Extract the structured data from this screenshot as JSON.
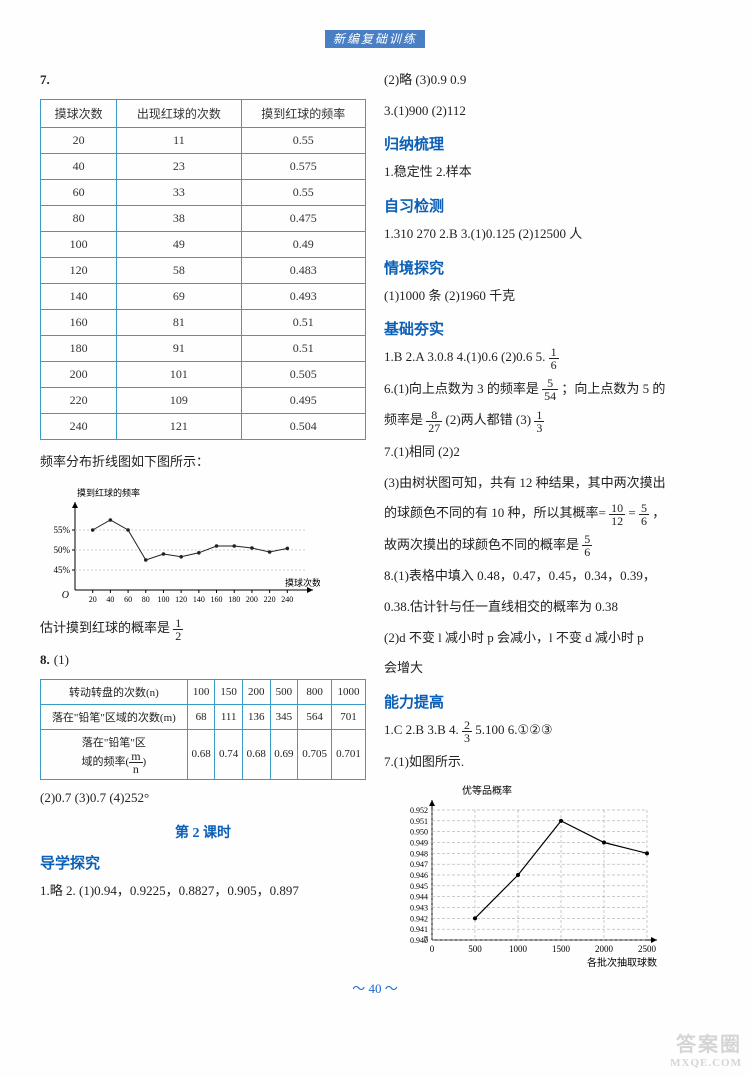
{
  "header": {
    "title": "新编复础训练"
  },
  "left": {
    "q7": {
      "label": "7.",
      "headers": [
        "摸球次数",
        "出现红球的次数",
        "摸到红球的频率"
      ],
      "rows": [
        [
          "20",
          "11",
          "0.55"
        ],
        [
          "40",
          "23",
          "0.575"
        ],
        [
          "60",
          "33",
          "0.55"
        ],
        [
          "80",
          "38",
          "0.475"
        ],
        [
          "100",
          "49",
          "0.49"
        ],
        [
          "120",
          "58",
          "0.483"
        ],
        [
          "140",
          "69",
          "0.493"
        ],
        [
          "160",
          "81",
          "0.51"
        ],
        [
          "180",
          "91",
          "0.51"
        ],
        [
          "200",
          "101",
          "0.505"
        ],
        [
          "220",
          "109",
          "0.495"
        ],
        [
          "240",
          "121",
          "0.504"
        ]
      ],
      "chart_caption": "频率分布折线图如下图所示：",
      "chart": {
        "ylabel": "摸到红球的频率",
        "xlabel": "摸球次数",
        "xticks": [
          "20",
          "40",
          "60",
          "80",
          "100",
          "120",
          "140",
          "160",
          "180",
          "200",
          "220",
          "240"
        ],
        "yticks": [
          "45%",
          "50%",
          "55%"
        ],
        "points_y": [
          0.55,
          0.575,
          0.55,
          0.475,
          0.49,
          0.483,
          0.493,
          0.51,
          0.51,
          0.505,
          0.495,
          0.504
        ],
        "ymin": 0.4,
        "ymax": 0.6,
        "line_color": "#222",
        "axis_color": "#000"
      },
      "conclusion_pre": "估计摸到红球的概率是",
      "conclusion_num": "1",
      "conclusion_den": "2"
    },
    "q8": {
      "label": "8.",
      "part1": "(1)",
      "row_heads": [
        "转动转盘的次数(n)",
        "落在\"铅笔\"区域的次数(m)",
        "落在\"铅笔\"区域的频率( m/n )"
      ],
      "cols": [
        "100",
        "150",
        "200",
        "500",
        "800",
        "1000"
      ],
      "row_m": [
        "68",
        "111",
        "136",
        "345",
        "564",
        "701"
      ],
      "row_f": [
        "0.68",
        "0.74",
        "0.68",
        "0.69",
        "0.705",
        "0.701"
      ],
      "rowhead3_a": "落在\"铅笔\"区",
      "rowhead3_b": "域的频率",
      "parts": "(2)0.7   (3)0.7   (4)252°"
    },
    "lesson": "第 2 课时",
    "sec_dxtc": "导学探究",
    "dxtc_text": "1.略   2. (1)0.94，0.9225，0.8827，0.905，0.897"
  },
  "right": {
    "top_line": "(2)略   (3)0.9   0.9",
    "line3": "3.(1)900   (2)112",
    "sec_gnsl": "归纳梳理",
    "gnsl_text": "1.稳定性   2.样本",
    "sec_zxjc": "自习检测",
    "zxjc_text": "1.310   270   2.B   3.(1)0.125   (2)12500 人",
    "sec_qjtj": "情境探究",
    "qjtj_text": "(1)1000 条   (2)1960 千克",
    "sec_jcgs": "基础夯实",
    "jcgs_l1_a": "1.B   2.A   3.0.8   4.(1)0.6   (2)0.6   5.",
    "jcgs_l1_fn": "1",
    "jcgs_l1_fd": "6",
    "jcgs_l6a": "6.(1)向上点数为 3 的频率是",
    "jcgs_l6a_fn": "5",
    "jcgs_l6a_fd": "54",
    "jcgs_l6a_tail": "；向上点数为 5 的",
    "jcgs_l6b_pre": "频率是",
    "jcgs_l6b_fn": "8",
    "jcgs_l6b_fd": "27",
    "jcgs_l6b_mid": "   (2)两人都错   (3)",
    "jcgs_l6b_f2n": "1",
    "jcgs_l6b_f2d": "3",
    "jcgs_l7a": "7.(1)相同   (2)2",
    "jcgs_l7b": "(3)由树状图可知，共有 12 种结果，其中两次摸出",
    "jcgs_l7c_pre": "的球颜色不同的有 10 种，所以其概率=",
    "jcgs_l7c_f1n": "10",
    "jcgs_l7c_f1d": "12",
    "jcgs_l7c_eq": " = ",
    "jcgs_l7c_f2n": "5",
    "jcgs_l7c_f2d": "6",
    "jcgs_l7c_tail": "，",
    "jcgs_l7d_pre": "故两次摸出的球颜色不同的概率是",
    "jcgs_l7d_fn": "5",
    "jcgs_l7d_fd": "6",
    "jcgs_l8a": "8.(1)表格中填入 0.48，0.47，0.45，0.34，0.39，",
    "jcgs_l8b": "0.38.估计针与任一直线相交的概率为 0.38",
    "jcgs_l8c": "(2)d 不变 l 减小时 p 会减小，l 不变 d 减小时 p",
    "jcgs_l8d": "会增大",
    "sec_nlts": "能力提高",
    "nlts_l1_a": "1.C   2.B   3.B   4.",
    "nlts_l1_fn": "2",
    "nlts_l1_fd": "3",
    "nlts_l1_b": "   5.100   6.①②③",
    "nlts_l7": "7.(1)如图所示.",
    "chart2": {
      "ylabel": "优等品概率",
      "xlabel": "各批次抽取球数",
      "yticks": [
        "0.940",
        "0.941",
        "0.942",
        "0.943",
        "0.944",
        "0.945",
        "0.946",
        "0.947",
        "0.948",
        "0.949",
        "0.950",
        "0.951",
        "0.952"
      ],
      "xticks": [
        "0",
        "500",
        "1000",
        "1500",
        "2000",
        "2500"
      ],
      "points": [
        [
          500,
          0.942
        ],
        [
          1000,
          0.946
        ],
        [
          1500,
          0.951
        ],
        [
          2000,
          0.949
        ],
        [
          2500,
          0.948
        ]
      ],
      "ymin": 0.94,
      "ymax": 0.952,
      "line_color": "#000",
      "grid_color": "#999",
      "axis_color": "#000",
      "seven_label": "7"
    }
  },
  "footer": "～ 40 ～",
  "watermark": {
    "main": "答案圈",
    "sub": "MXQE.COM"
  }
}
